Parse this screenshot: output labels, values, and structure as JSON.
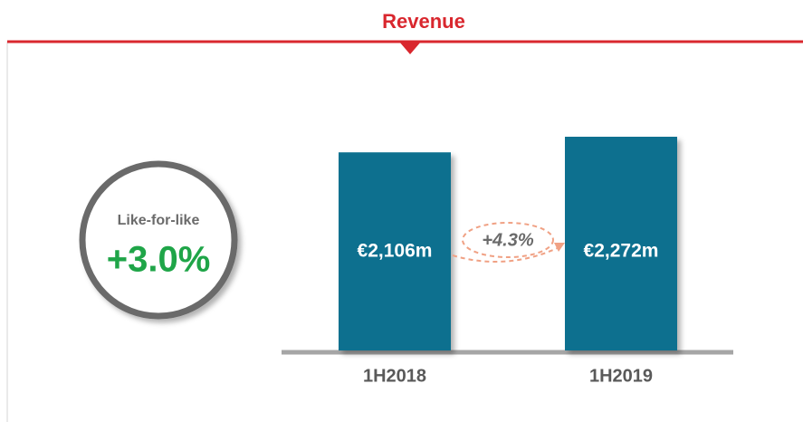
{
  "chart_data": {
    "type": "bar",
    "title": "Revenue",
    "categories": [
      "1H2018",
      "1H2019"
    ],
    "values": [
      2106,
      2272
    ],
    "value_labels": [
      "€2,106m",
      "€2,272m"
    ],
    "color": "#08708f",
    "growth_label": "+4.3%",
    "callout": {
      "label": "Like-for-like",
      "value": "+3.0%"
    }
  }
}
